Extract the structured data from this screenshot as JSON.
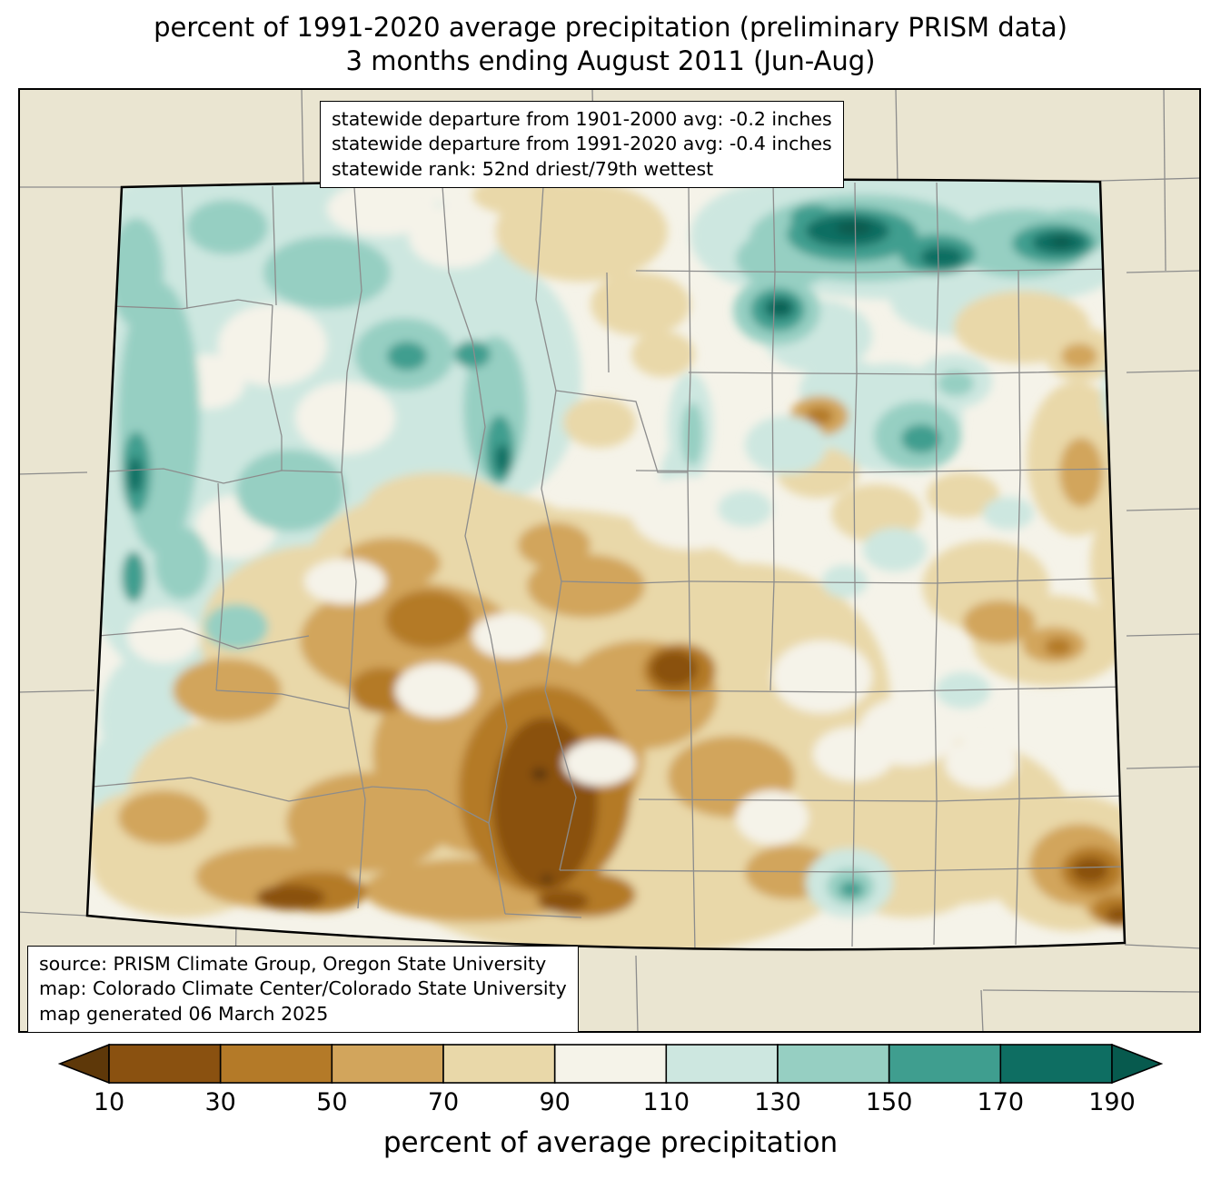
{
  "title": {
    "line1": "percent of 1991-2020 average precipitation (preliminary PRISM data)",
    "line2": "3 months ending August 2011 (Jun-Aug)"
  },
  "stats_box": {
    "lines": [
      "statewide departure from 1901-2000 avg: -0.2 inches",
      "statewide departure from 1991-2020 avg: -0.4 inches",
      "statewide rank: 52nd driest/79th wettest"
    ]
  },
  "source_box": {
    "lines": [
      "source: PRISM Climate Group, Oregon State University",
      "map: Colorado Climate Center/Colorado State University",
      "map generated 06 March 2025"
    ]
  },
  "colorbar": {
    "label": "percent of average precipitation",
    "ticks": [
      "10",
      "30",
      "50",
      "70",
      "90",
      "110",
      "130",
      "150",
      "170",
      "190"
    ],
    "arrow_low_color": "#5e3809",
    "segment_colors": [
      "#8a5110",
      "#b47a28",
      "#d2a55c",
      "#e9d8a9",
      "#f5f3e9",
      "#cde7e0",
      "#96cfc2",
      "#3f9e8f",
      "#0e6e62"
    ],
    "arrow_high_color": "#075a4e"
  },
  "map": {
    "region": "Colorado",
    "background_color": "#eae5d1",
    "state_fill": "#f5f3e9",
    "county_line_color": "#8c8c8c",
    "border_color": "#000000"
  }
}
